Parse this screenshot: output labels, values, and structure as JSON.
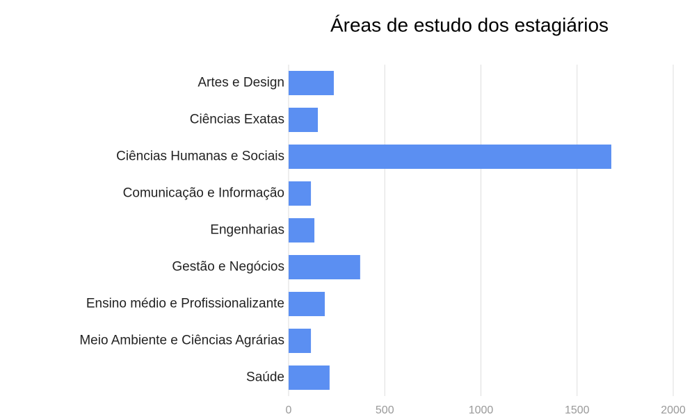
{
  "chart_data": {
    "type": "bar",
    "orientation": "horizontal",
    "title": "Áreas de estudo dos estagiários",
    "categories": [
      "Artes e Design",
      "Ciências Exatas",
      "Ciências Humanas e Sociais",
      "Comunicação e Informação",
      "Engenharias",
      "Gestão e Negócios",
      "Ensino médio e Profissionalizante",
      "Meio Ambiente e Ciências Agrárias",
      "Saúde"
    ],
    "values": [
      235,
      152,
      1678,
      116,
      134,
      372,
      188,
      116,
      213
    ],
    "color": "#5b8ff2",
    "xlim": [
      0,
      2000
    ],
    "xticks": [
      0,
      500,
      1000,
      1500,
      2000
    ],
    "grid": true
  }
}
